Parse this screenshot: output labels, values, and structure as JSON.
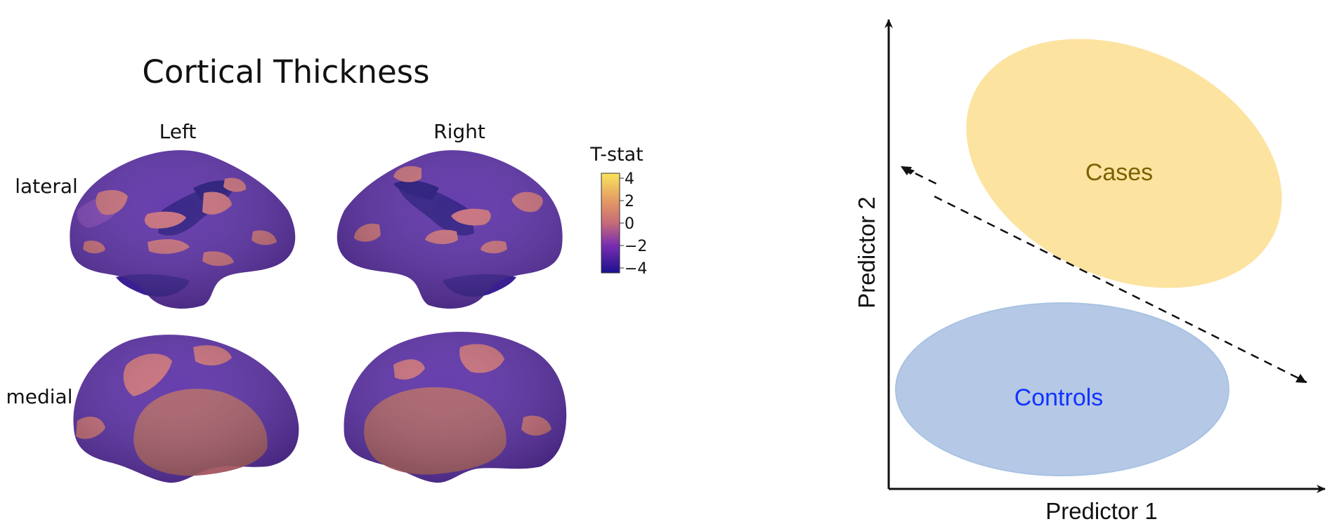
{
  "left_panel": {
    "title": "Cortical Thickness",
    "hemispheres": [
      "Left",
      "Right"
    ],
    "views": [
      "lateral",
      "medial"
    ],
    "colorbar": {
      "title": "T-stat",
      "ticks": [
        "4",
        "2",
        "0",
        "−2",
        "−4"
      ]
    }
  },
  "right_panel": {
    "x_axis_label": "Predictor 1",
    "y_axis_label": "Predictor 2",
    "clusters": {
      "cases": {
        "label": "Cases",
        "fill": "#fce3a0",
        "text_color": "#7a6100"
      },
      "controls": {
        "label": "Controls",
        "fill": "#b5c8e6",
        "stroke": "#a8c3e2",
        "text_color": "#1034ff"
      }
    }
  },
  "colors": {
    "surface_base": "#5a2ea6",
    "surface_dark": "#2a1680",
    "surface_light": "#7a3fb3",
    "patch": "#c56b78",
    "patch_medial": "#c06a78",
    "colorbar_top": "#f8e45c",
    "colorbar_bottom": "#1b1090"
  }
}
